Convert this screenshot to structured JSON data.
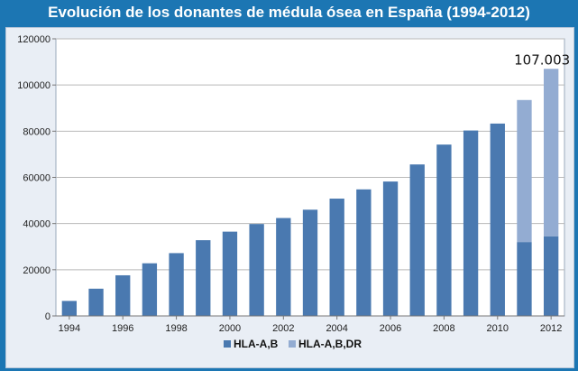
{
  "title": "Evolución de los donantes de médula ósea en España (1994-2012)",
  "colors": {
    "background": "#1c76b3",
    "plot_bg": "#ffffff",
    "series_ab": "#4a79b0",
    "series_abdr": "#93acd2"
  },
  "chart_data": {
    "type": "bar",
    "stacked": true,
    "categories": [
      "1994",
      "1995",
      "1996",
      "1997",
      "1998",
      "1999",
      "2000",
      "2001",
      "2002",
      "2003",
      "2004",
      "2005",
      "2006",
      "2007",
      "2008",
      "2009",
      "2010",
      "2011",
      "2012"
    ],
    "x_tick_labels": [
      "1994",
      "1996",
      "1998",
      "2000",
      "2002",
      "2004",
      "2006",
      "2008",
      "2010",
      "2012"
    ],
    "series": [
      {
        "name": "HLA-A,B",
        "values": [
          6500,
          11800,
          17600,
          22800,
          27200,
          32800,
          36500,
          39800,
          42400,
          46000,
          50800,
          54800,
          58200,
          65600,
          74200,
          80300,
          83300,
          32000,
          34500
        ]
      },
      {
        "name": "HLA-A,B,DR",
        "values": [
          0,
          0,
          0,
          0,
          0,
          0,
          0,
          0,
          0,
          0,
          0,
          0,
          0,
          0,
          0,
          0,
          0,
          61500,
          72503
        ]
      }
    ],
    "ylim": [
      0,
      120000
    ],
    "y_ticks": [
      "0",
      "20000",
      "40000",
      "60000",
      "80000",
      "100000",
      "120000"
    ],
    "grid": "horizontal",
    "legend_position": "bottom",
    "annotations": [
      {
        "text": "107.003"
      }
    ]
  }
}
